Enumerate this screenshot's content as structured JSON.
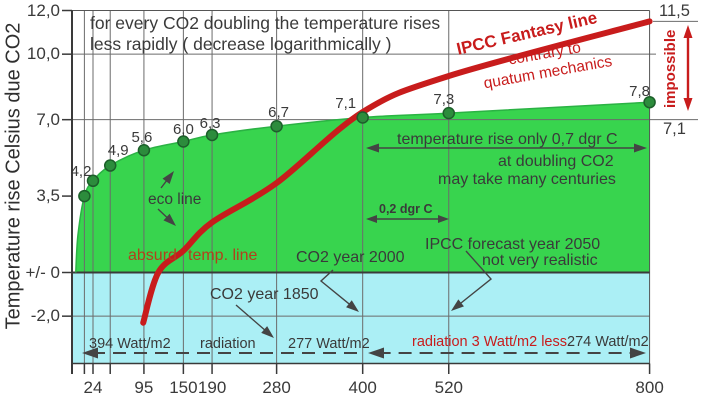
{
  "title": {
    "line1": "for every CO2 doubling the temperature rises",
    "line2": "less rapidly ( decrease logarithmically )"
  },
  "y_axis": {
    "title": "Temperature rise Celsius due CO2",
    "ticks": [
      {
        "label": "12,0",
        "value": 12
      },
      {
        "label": "10,0",
        "value": 10
      },
      {
        "label": "7,0",
        "value": 7
      },
      {
        "label": "3,5",
        "value": 3.5
      },
      {
        "label": "+/- 0",
        "value": 0
      },
      {
        "label": "-2,0",
        "value": -2
      }
    ]
  },
  "x_axis": {
    "ticks": [
      {
        "label": "24",
        "value": 24
      },
      {
        "label": "95",
        "value": 95
      },
      {
        "label": "150",
        "value": 150
      },
      {
        "label": "190",
        "value": 190
      },
      {
        "label": "280",
        "value": 280
      },
      {
        "label": "400",
        "value": 400
      },
      {
        "label": "520",
        "value": 520
      },
      {
        "label": "800",
        "value": 800
      }
    ]
  },
  "chart_data": {
    "type": "line",
    "title": "for every CO2 doubling the temperature rises less rapidly ( decrease logarithmically )",
    "ylim": [
      -2.7,
      12
    ],
    "xlim": [
      0,
      800
    ],
    "legend": "none",
    "x_gridlines_at": [
      12,
      24,
      48,
      95,
      150,
      190,
      280,
      400,
      520
    ],
    "y_gridlines_at": [
      10,
      7,
      -2
    ],
    "series": [
      {
        "name": "eco line",
        "style": "green area with dark-green dots",
        "x": [
          0,
          12,
          24,
          48,
          95,
          150,
          190,
          280,
          400,
          520,
          800
        ],
        "y": [
          0,
          3.5,
          4.2,
          4.9,
          5.6,
          6.0,
          6.3,
          6.7,
          7.1,
          7.3,
          7.8
        ],
        "point_labels": [
          "",
          "",
          "4,2",
          "4,9",
          "5,6",
          "6,0",
          "6,3",
          "6,7",
          "7,1",
          "7,3",
          "7,8"
        ]
      },
      {
        "name": "IPCC Fantasy line",
        "alias": "absurd temp. line",
        "style": "thick red curve",
        "x": [
          94,
          115,
          150,
          190,
          280,
          400,
          520,
          800
        ],
        "y": [
          -2.3,
          0,
          1.0,
          2.3,
          4.1,
          7.35,
          9.0,
          11.5
        ]
      }
    ]
  },
  "annotations": {
    "ipcc_fantasy_line": "IPCC Fantasy line",
    "contrary_line1": "contrary to",
    "contrary_line2": "quatum mechanics",
    "impossible": "impossible",
    "value_11_5": "11,5",
    "value_7_1": "7,1",
    "temp_rise": "temperature rise only 0,7 dgr C",
    "at_doubling": "at doubling CO2",
    "many_centuries": "may take many centuries",
    "dgr_0_2": "0,2 dgr C",
    "ipcc_forecast_line1": "IPCC forecast year 2050",
    "ipcc_forecast_line2": "not very realistic",
    "co2_year_2000": "CO2 year 2000",
    "co2_year_1850": "CO2 year 1850",
    "eco_line_label": "eco line",
    "absurd": "absurd",
    "temp_line": "temp. line",
    "watt_394": "394 Watt/m2",
    "radiation": "radiation",
    "watt_277": "277 Watt/m2",
    "radiation_less": "radiation 3 Watt/m2 less",
    "watt_274": "274 Watt/m2"
  },
  "colors": {
    "eco_fill": "#38d44e",
    "eco_edge": "#2bb244",
    "below_zero_fill": "#abeff5",
    "line_red": "#c81c1c",
    "absurd_text_red": "#b2401c",
    "dot_green": "#2c8c3c",
    "dot_edge": "#1c5f2a",
    "grid_gray": "#6b6b6b",
    "text_dark": "#3a3a3a",
    "arrow_gray": "#444444"
  }
}
